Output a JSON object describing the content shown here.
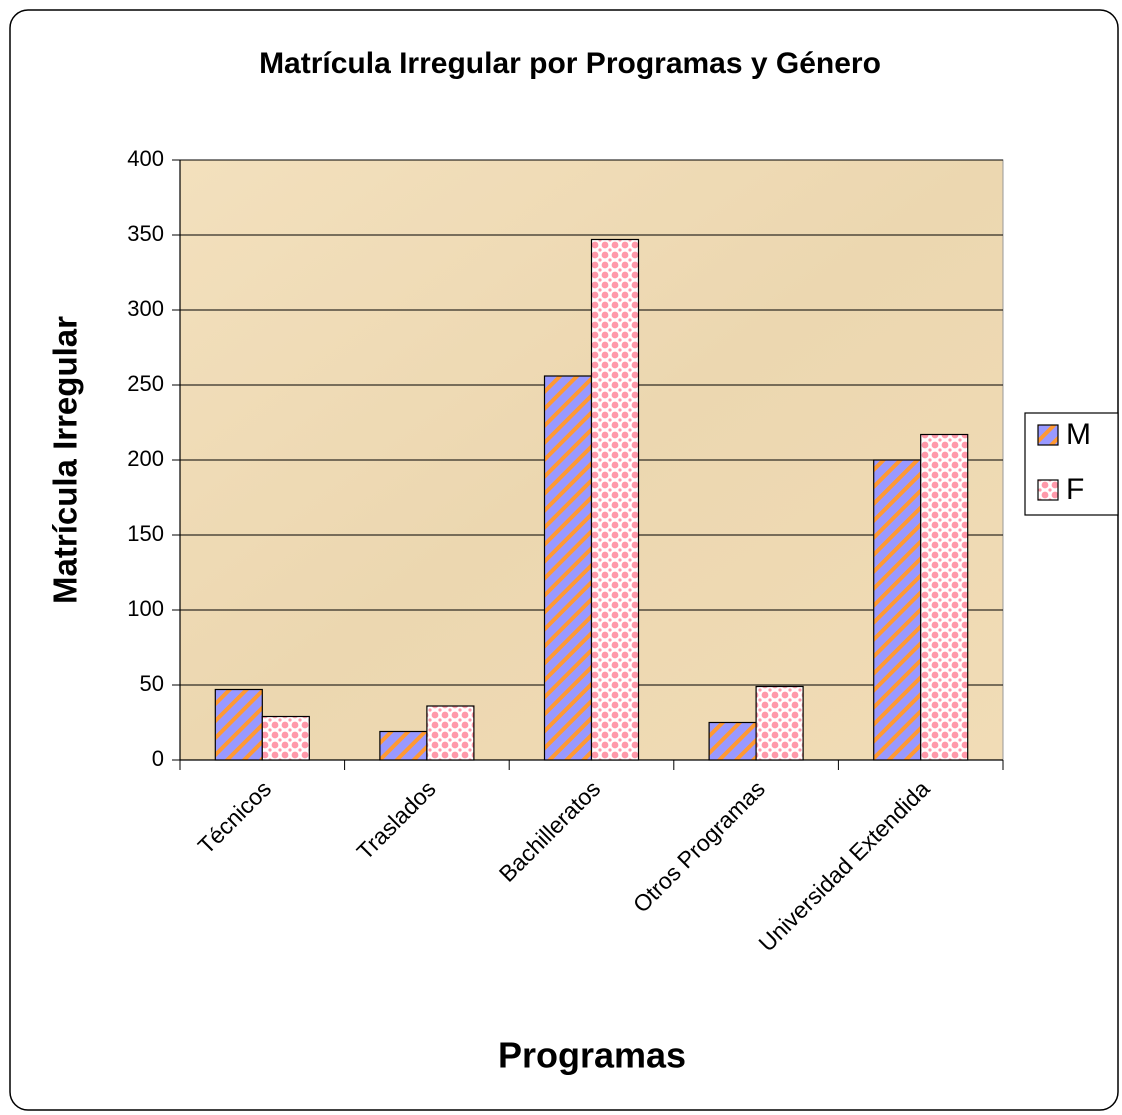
{
  "chart_data": {
    "type": "bar",
    "title": "Matrícula Irregular por Programas y Género",
    "y_label": "Matrícula Irregular",
    "x_label": "Programas",
    "categories": [
      "Técnicos",
      "Traslados",
      "Bachilleratos",
      "Otros Programas",
      "Universidad Extendida"
    ],
    "series": [
      {
        "name": "M",
        "color": "#9999ff",
        "values": [
          47,
          19,
          256,
          25,
          200
        ]
      },
      {
        "name": "F",
        "color": "#ff99aa",
        "values": [
          29,
          36,
          347,
          49,
          217
        ]
      }
    ],
    "ylim": [
      0,
      400
    ],
    "yticks": [
      0,
      50,
      100,
      150,
      200,
      250,
      300,
      350,
      400
    ],
    "grid": true,
    "legend": "right"
  }
}
